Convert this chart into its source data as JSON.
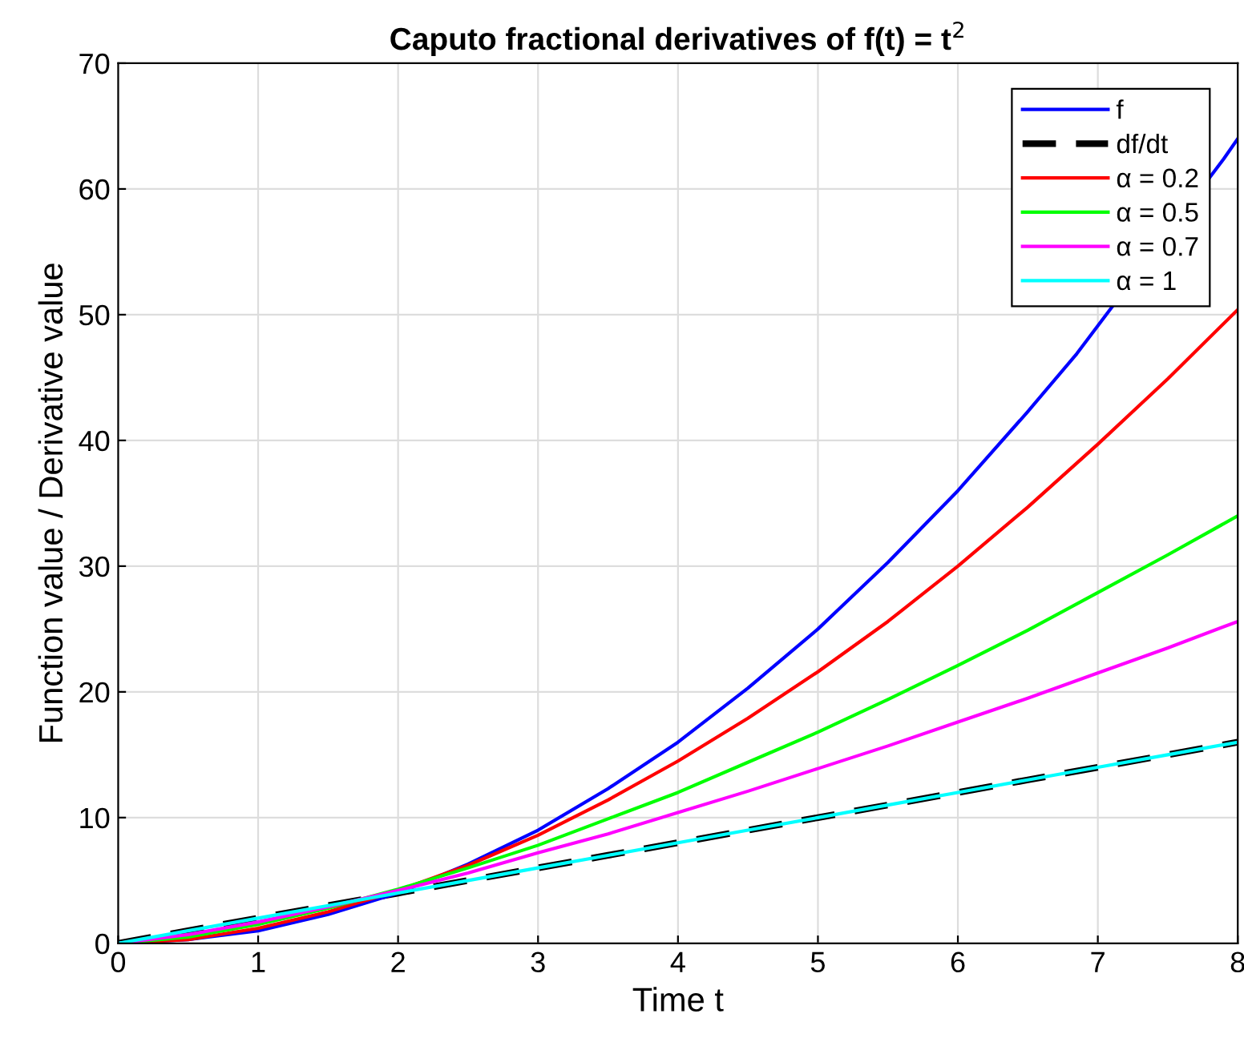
{
  "chart_data": {
    "type": "line",
    "title": "Caputo fractional derivatives of f(t) = t$^{2}$",
    "xlabel": "Time t",
    "ylabel": "Function value / Derivative value",
    "x": [
      0,
      0.5,
      1,
      1.5,
      2,
      2.5,
      3,
      3.5,
      4,
      4.5,
      5,
      5.5,
      6,
      6.5,
      7,
      7.5,
      8
    ],
    "series": [
      {
        "name": "f",
        "color": "#0000ff",
        "line_style": "solid",
        "x": [
          0,
          0.5,
          1,
          1.5,
          2,
          2.5,
          3,
          3.5,
          4,
          4.5,
          5,
          5.5,
          6,
          6.5,
          6.85,
          7.9,
          8
        ],
        "values": [
          0,
          0.3,
          1,
          2.3,
          4,
          6.3,
          9,
          12.3,
          16,
          20.3,
          25,
          30.3,
          36,
          42.3,
          46.9,
          62.4,
          64
        ]
      },
      {
        "name": "df/dt",
        "color": "#000000",
        "line_style": "dashed",
        "values": [
          0,
          1,
          2,
          3,
          4,
          5,
          6,
          7,
          8,
          9,
          10,
          11,
          12,
          13,
          14,
          15,
          16
        ]
      },
      {
        "name": "α = 0.2",
        "color": "#ff0000",
        "line_style": "solid",
        "values": [
          0,
          0.3,
          1.2,
          2.5,
          4.2,
          6.2,
          8.6,
          11.4,
          14.5,
          17.9,
          21.6,
          25.6,
          30.0,
          34.7,
          39.7,
          44.9,
          50.4
        ]
      },
      {
        "name": "α = 0.5",
        "color": "#00ff00",
        "line_style": "solid",
        "values": [
          0,
          0.5,
          1.5,
          2.8,
          4.3,
          6.0,
          7.8,
          9.9,
          12.0,
          14.4,
          16.8,
          19.4,
          22.1,
          24.9,
          27.9,
          30.9,
          34.0
        ]
      },
      {
        "name": "α = 0.7",
        "color": "#ff00ff",
        "line_style": "solid",
        "values": [
          0,
          0.7,
          1.7,
          2.9,
          4.2,
          5.6,
          7.2,
          8.7,
          10.4,
          12.1,
          13.9,
          15.7,
          17.6,
          19.5,
          21.5,
          23.5,
          25.6
        ]
      },
      {
        "name": "α = 1",
        "color": "#00ffff",
        "line_style": "solid",
        "values": [
          0,
          1,
          2,
          3,
          4,
          5,
          6,
          7,
          8,
          9,
          10,
          11,
          12,
          13,
          14,
          15,
          16
        ]
      }
    ],
    "xlim": [
      0,
      8
    ],
    "ylim": [
      0,
      70
    ],
    "xticks": [
      0,
      1,
      2,
      3,
      4,
      5,
      6,
      7,
      8
    ],
    "yticks": [
      0,
      10,
      20,
      30,
      40,
      50,
      60,
      70
    ],
    "grid": true,
    "legend": "top right",
    "marker": "none"
  }
}
